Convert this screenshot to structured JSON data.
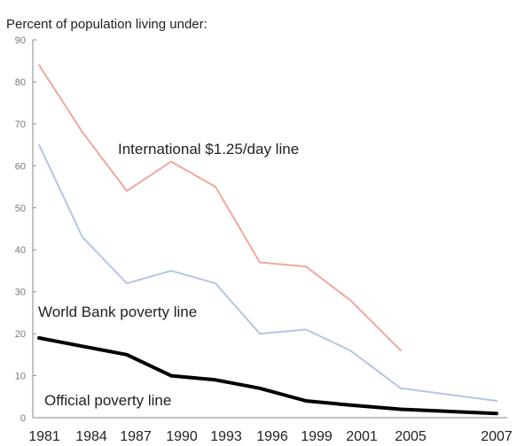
{
  "chart_data": {
    "type": "line",
    "title": "Percent of population living under:",
    "xlabel": "",
    "ylabel": "",
    "ylim": [
      0,
      90
    ],
    "yticks": [
      0,
      10,
      20,
      30,
      40,
      50,
      60,
      70,
      80,
      90
    ],
    "categories": [
      "1981",
      "1984",
      "1987",
      "1990",
      "1993",
      "1996",
      "1999",
      "2001",
      "2005",
      "2007"
    ],
    "grid": false,
    "legend": "inline labels",
    "series": [
      {
        "name": "International $1.25/day line",
        "color": "#f0a89a",
        "values": [
          84,
          68,
          54,
          61,
          55,
          37,
          36,
          28,
          16,
          null
        ]
      },
      {
        "name": "World Bank poverty line",
        "color": "#b4c4e6",
        "values": [
          65,
          43,
          32,
          35,
          32,
          20,
          21,
          16,
          7,
          4
        ]
      },
      {
        "name": "Official poverty line",
        "color": "#000000",
        "values": [
          19,
          17,
          15,
          10,
          9,
          7,
          4,
          3,
          2,
          1
        ]
      }
    ]
  }
}
